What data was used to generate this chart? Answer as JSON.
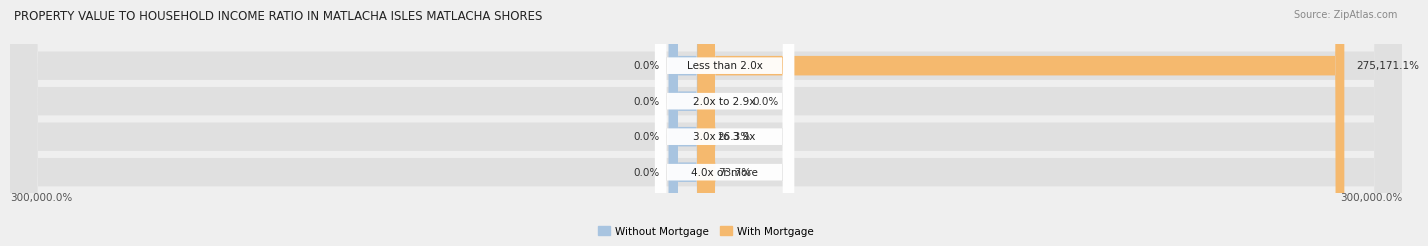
{
  "title": "PROPERTY VALUE TO HOUSEHOLD INCOME RATIO IN MATLACHA ISLES MATLACHA SHORES",
  "source": "Source: ZipAtlas.com",
  "categories": [
    "Less than 2.0x",
    "2.0x to 2.9x",
    "3.0x to 3.9x",
    "4.0x or more"
  ],
  "without_mortgage_pct": [
    0.0,
    0.0,
    0.0,
    0.0
  ],
  "with_mortgage_pct": [
    275171.1,
    0.0,
    26.3,
    73.7
  ],
  "without_mortgage_labels": [
    "0.0%",
    "0.0%",
    "0.0%",
    "0.0%"
  ],
  "with_mortgage_labels": [
    "275,171.1%",
    "0.0%",
    "26.3%",
    "73.7%"
  ],
  "color_without": "#a8c4e0",
  "color_with": "#f5b96e",
  "bg_color": "#efefef",
  "bar_bg_color": "#e0e0e0",
  "x_label_left": "300,000.0%",
  "x_label_right": "300,000.0%",
  "title_fontsize": 8.5,
  "source_fontsize": 7,
  "label_fontsize": 7.5,
  "category_fontsize": 7.5,
  "legend_fontsize": 7.5,
  "max_val": 300000
}
